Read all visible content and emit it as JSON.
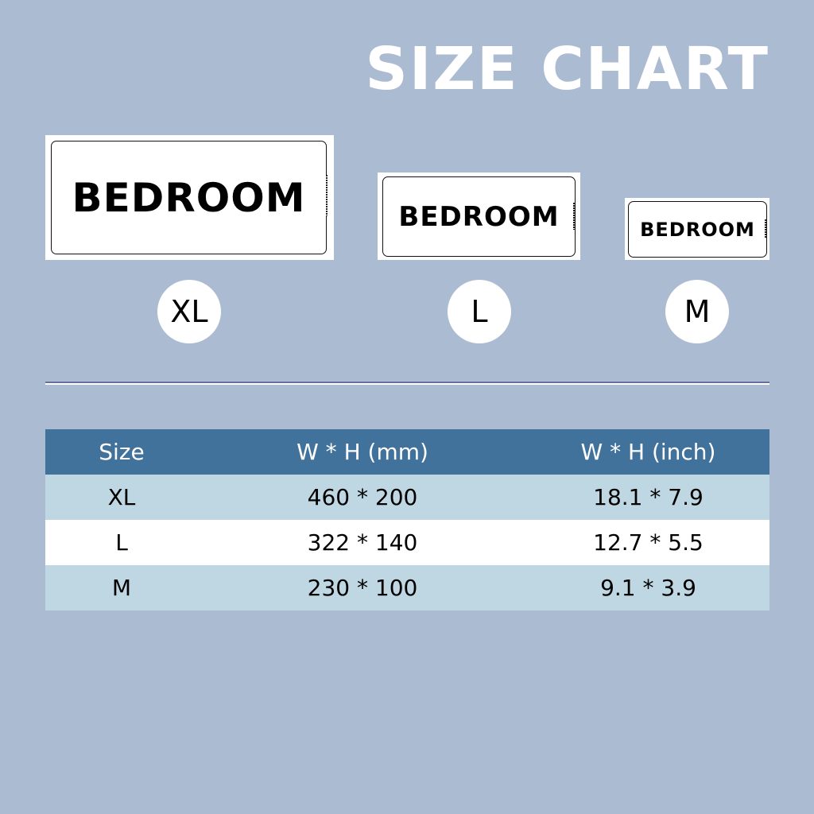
{
  "title": "SIZE CHART",
  "signs": [
    {
      "size": "XL",
      "text": "BEDROOM"
    },
    {
      "size": "L",
      "text": "BEDROOM"
    },
    {
      "size": "M",
      "text": "BEDROOM"
    }
  ],
  "table": {
    "headers": [
      "Size",
      "W * H (mm)",
      "W * H (inch)"
    ],
    "rows": [
      [
        "XL",
        "460 * 200",
        "18.1 * 7.9"
      ],
      [
        "L",
        "322 * 140",
        "12.7 * 5.5"
      ],
      [
        "M",
        "230 * 100",
        "9.1 * 3.9"
      ]
    ]
  },
  "colors": {
    "background": "#abbbd1",
    "header": "#41729c",
    "row_alt": "#bfd7e2"
  }
}
